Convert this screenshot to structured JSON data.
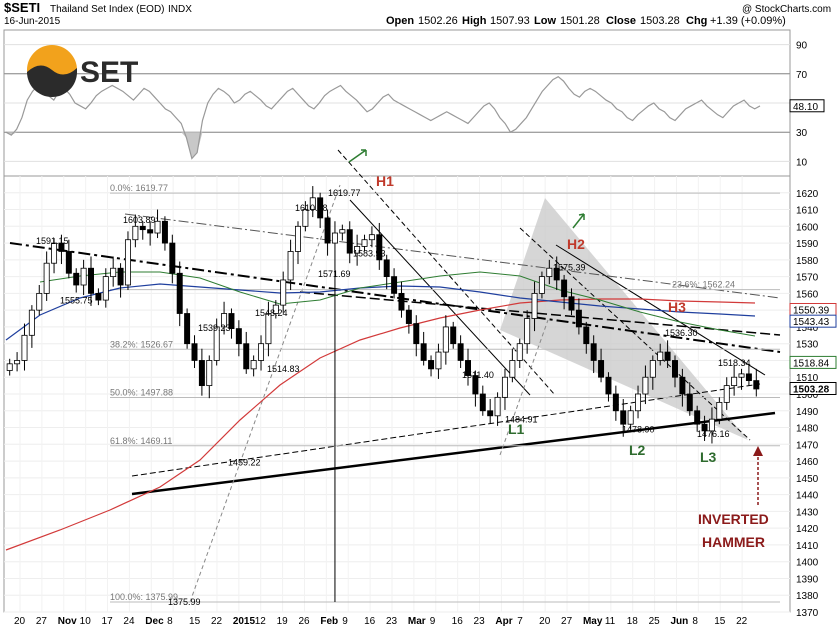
{
  "header": {
    "symbol": "$SETI",
    "name": "Thailand Set Index (EOD)",
    "exchange": "INDX",
    "date": "16-Jun-2015",
    "copyright": "@ StockCharts.com",
    "open_label": "Open",
    "open": "1502.26",
    "high_label": "High",
    "high": "1507.93",
    "low_label": "Low",
    "low": "1501.28",
    "close_label": "Close",
    "close": "1503.28",
    "chg_label": "Chg",
    "chg": "+1.39 (+0.09%)"
  },
  "logo": {
    "text": "SET",
    "colors": {
      "sun": "#f2a21c",
      "dark": "#2b2b2b"
    }
  },
  "colors": {
    "rsi_fill": "#c8c8c8",
    "ma_red": "#d23a3a",
    "ma_blue": "#1f3f9e",
    "ma_green": "#2e7d32",
    "fan": "#9a9a9a",
    "annot_red": "#c0392b",
    "annot_green": "#2e6b2e",
    "arrow": "#8b1a1a"
  },
  "chart_data": [
    {
      "type": "line",
      "panel": "RSI",
      "ylim": [
        0,
        100
      ],
      "yticks": [
        10,
        30,
        50,
        70,
        90
      ],
      "last_value_label": "48.10",
      "values": [
        30,
        28,
        32,
        40,
        52,
        58,
        62,
        60,
        55,
        52,
        58,
        60,
        56,
        50,
        48,
        46,
        50,
        55,
        58,
        60,
        62,
        60,
        58,
        55,
        52,
        56,
        60,
        58,
        54,
        50,
        46,
        44,
        40,
        36,
        26,
        12,
        16,
        38,
        50,
        56,
        60,
        58,
        55,
        50,
        52,
        56,
        58,
        55,
        52,
        48,
        46,
        50,
        54,
        58,
        60,
        56,
        52,
        48,
        46,
        50,
        55,
        58,
        60,
        62,
        58,
        55,
        52,
        48,
        44,
        46,
        50,
        54,
        56,
        52,
        50,
        48,
        46,
        44,
        42,
        40,
        38,
        40,
        42,
        44,
        42,
        40,
        38,
        36,
        40,
        44,
        48,
        50,
        46,
        40,
        36,
        30,
        32,
        36,
        40,
        46,
        52,
        58,
        62,
        66,
        68,
        65,
        60,
        56,
        54,
        58,
        60,
        58,
        55,
        52,
        50,
        46,
        44,
        40,
        38,
        42,
        45,
        48,
        50,
        46,
        44,
        40,
        38,
        42,
        46,
        48,
        50,
        52,
        48,
        45,
        42,
        40,
        44,
        48,
        50,
        52,
        48,
        46,
        48
      ]
    },
    {
      "type": "candlestick",
      "panel": "price",
      "ylim": [
        1370,
        1630
      ],
      "yticks": [
        1370,
        1380,
        1390,
        1400,
        1410,
        1420,
        1430,
        1440,
        1450,
        1460,
        1470,
        1480,
        1490,
        1500,
        1510,
        1520,
        1530,
        1540,
        1550,
        1560,
        1570,
        1580,
        1590,
        1600,
        1610,
        1620
      ],
      "x_labels": [
        "20",
        "27",
        "Nov",
        "10",
        "17",
        "24",
        "Dec",
        "8",
        "15",
        "22",
        "2015",
        "12",
        "19",
        "26",
        "Feb",
        "9",
        "16",
        "23",
        "Mar",
        "9",
        "16",
        "23",
        "Apr",
        "7",
        "20",
        "27",
        "May",
        "11",
        "18",
        "25",
        "Jun",
        "8",
        "15",
        "22"
      ],
      "close_anchors": [
        1518,
        1520,
        1535,
        1550,
        1560,
        1578,
        1590,
        1585,
        1572,
        1565,
        1575,
        1560,
        1556,
        1570,
        1575,
        1565,
        1592,
        1600,
        1598,
        1596,
        1603,
        1590,
        1572,
        1548,
        1530,
        1520,
        1505,
        1520,
        1540,
        1548,
        1539,
        1530,
        1515,
        1520,
        1530,
        1548,
        1553,
        1568,
        1585,
        1600,
        1610,
        1617,
        1605,
        1590,
        1596,
        1598,
        1584,
        1588,
        1592,
        1595,
        1580,
        1570,
        1560,
        1550,
        1542,
        1530,
        1520,
        1515,
        1525,
        1540,
        1530,
        1520,
        1511,
        1500,
        1490,
        1487,
        1498,
        1510,
        1520,
        1530,
        1545,
        1560,
        1570,
        1575,
        1568,
        1558,
        1550,
        1540,
        1530,
        1520,
        1510,
        1500,
        1490,
        1482,
        1490,
        1500,
        1510,
        1520,
        1525,
        1520,
        1510,
        1500,
        1490,
        1482,
        1478,
        1485,
        1495,
        1505,
        1510,
        1512,
        1508,
        1503
      ],
      "level_labels": [
        "1591.15",
        "1603.89",
        "1555.75",
        "1539.23",
        "1548.24",
        "1514.83",
        "1459.22",
        "1375.99",
        "1610.78",
        "1619.77",
        "1583.93",
        "1571.69",
        "1511.40",
        "1484.91",
        "1575.39",
        "1478.90",
        "1536.30",
        "1476.16",
        "1518.34"
      ],
      "fib_labels": [
        "0.0%: 1619.77",
        "23.6%: 1562.24",
        "38.2%: 1526.67",
        "50.0%: 1497.88",
        "61.8%: 1469.11",
        "100.0%: 1375.99"
      ],
      "fib_values": [
        1619.77,
        1562.24,
        1526.67,
        1497.88,
        1469.11,
        1375.99
      ],
      "moving_averages": {
        "red_labels": [
          "1550.39"
        ],
        "blue_labels": [
          "1543.43"
        ],
        "other_labels": [
          "1518.84"
        ]
      },
      "last_close_label": "1503.28",
      "annotations": {
        "h1": "H1",
        "h2": "H2",
        "h3": "H3",
        "l1": "L1",
        "l2": "L2",
        "l3": "L3",
        "note_line1": "INVERTED",
        "note_line2": "HAMMER"
      }
    }
  ]
}
